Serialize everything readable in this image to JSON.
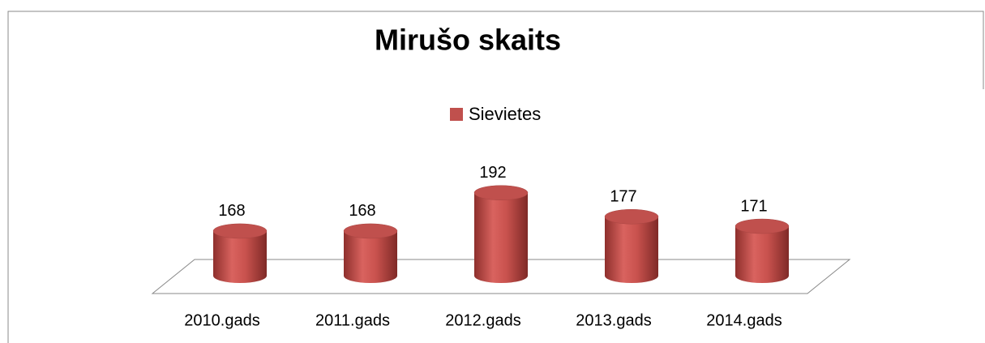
{
  "chart_data": {
    "type": "bar",
    "title": "Mirušo skaits",
    "categories": [
      "2010.gads",
      "2011.gads",
      "2012.gads",
      "2013.gads",
      "2014.gads"
    ],
    "series": [
      {
        "name": "Sievietes",
        "color": "#c0504d",
        "values": [
          168,
          168,
          192,
          177,
          171
        ]
      }
    ],
    "ylim": [
      140,
      200
    ]
  }
}
